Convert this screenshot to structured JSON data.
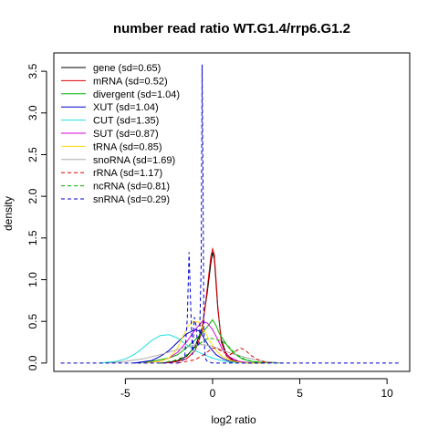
{
  "chart_data": {
    "type": "line",
    "title": "number read ratio WT.G1.4/rrp6.G1.2",
    "xlabel": "log2 ratio",
    "ylabel": "density",
    "xlim": [
      -9.1,
      11.3
    ],
    "ylim": [
      -0.1,
      3.72
    ],
    "xticks": [
      -5,
      0,
      5,
      10
    ],
    "xtick_labels": [
      "-5",
      "0",
      "5",
      "10"
    ],
    "yticks": [
      0.0,
      0.5,
      1.0,
      1.5,
      2.0,
      2.5,
      3.0,
      3.5
    ],
    "ytick_labels": [
      "0.0",
      "0.5",
      "1.0",
      "1.5",
      "2.0",
      "2.5",
      "3.0",
      "3.5"
    ],
    "legend_position": "top-left",
    "grid": false,
    "series": [
      {
        "name": "gene (sd=0.65)",
        "color": "#000000",
        "dash": "solid",
        "x": [
          -3.0,
          -2.5,
          -2.0,
          -1.5,
          -1.0,
          -0.6,
          -0.3,
          -0.1,
          0.0,
          0.1,
          0.2,
          0.3,
          0.5,
          0.8,
          1.2,
          1.8,
          2.5,
          3.0
        ],
        "y": [
          0.0,
          0.01,
          0.03,
          0.08,
          0.2,
          0.42,
          0.85,
          1.2,
          1.33,
          1.25,
          0.95,
          0.65,
          0.28,
          0.1,
          0.03,
          0.01,
          0.0,
          0.0
        ]
      },
      {
        "name": "mRNA (sd=0.52)",
        "color": "#df0000",
        "dash": "solid",
        "x": [
          -3.0,
          -2.5,
          -2.0,
          -1.5,
          -1.0,
          -0.6,
          -0.3,
          -0.1,
          0.0,
          0.1,
          0.2,
          0.3,
          0.5,
          0.8,
          1.2,
          1.8,
          2.5,
          3.0
        ],
        "y": [
          0.0,
          0.005,
          0.02,
          0.05,
          0.15,
          0.38,
          0.9,
          1.28,
          1.37,
          1.3,
          1.0,
          0.68,
          0.25,
          0.08,
          0.02,
          0.005,
          0.0,
          0.0
        ]
      },
      {
        "name": "divergent (sd=1.04)",
        "color": "#00b000",
        "dash": "solid",
        "x": [
          -4.5,
          -3.5,
          -2.5,
          -2.0,
          -1.5,
          -1.0,
          -0.5,
          0.0,
          0.2,
          0.4,
          0.8,
          1.2,
          1.7,
          2.2,
          3.0,
          4.0
        ],
        "y": [
          0.0,
          0.02,
          0.06,
          0.1,
          0.18,
          0.28,
          0.38,
          0.52,
          0.45,
          0.35,
          0.22,
          0.12,
          0.05,
          0.02,
          0.005,
          0.0
        ]
      },
      {
        "name": "XUT (sd=1.04)",
        "color": "#0000cc",
        "dash": "solid",
        "x": [
          -4.5,
          -3.5,
          -3.0,
          -2.5,
          -2.0,
          -1.5,
          -1.0,
          -0.7,
          -0.5,
          -0.2,
          0.2,
          0.6,
          1.0,
          1.5,
          2.0,
          3.0
        ],
        "y": [
          0.0,
          0.03,
          0.08,
          0.15,
          0.25,
          0.35,
          0.4,
          0.38,
          0.3,
          0.2,
          0.1,
          0.05,
          0.02,
          0.01,
          0.0,
          0.0
        ]
      },
      {
        "name": "CUT (sd=1.35)",
        "color": "#22dddd",
        "dash": "solid",
        "x": [
          -6.5,
          -5.5,
          -5.0,
          -4.5,
          -4.0,
          -3.5,
          -3.0,
          -2.5,
          -2.0,
          -1.5,
          -1.0,
          -0.5,
          0.0,
          0.5,
          1.0,
          2.0
        ],
        "y": [
          0.0,
          0.02,
          0.05,
          0.1,
          0.18,
          0.27,
          0.33,
          0.34,
          0.3,
          0.22,
          0.15,
          0.1,
          0.06,
          0.03,
          0.01,
          0.0
        ]
      },
      {
        "name": "SUT (sd=0.87)",
        "color": "#dd00dd",
        "dash": "solid",
        "x": [
          -4.0,
          -3.0,
          -2.5,
          -2.0,
          -1.5,
          -1.0,
          -0.6,
          -0.3,
          0.0,
          0.3,
          0.6,
          1.0,
          1.5,
          2.0,
          3.0
        ],
        "y": [
          0.0,
          0.02,
          0.06,
          0.13,
          0.25,
          0.4,
          0.5,
          0.48,
          0.4,
          0.28,
          0.15,
          0.07,
          0.02,
          0.005,
          0.0
        ]
      },
      {
        "name": "tRNA (sd=0.85)",
        "color": "#ffdd00",
        "dash": "solid",
        "x": [
          -4.0,
          -3.0,
          -2.5,
          -2.0,
          -1.7,
          -1.4,
          -1.1,
          -0.8,
          -0.5,
          -0.2,
          0.2,
          0.6,
          1.0,
          1.5,
          2.0,
          3.0
        ],
        "y": [
          0.0,
          0.02,
          0.06,
          0.18,
          0.32,
          0.44,
          0.5,
          0.49,
          0.4,
          0.28,
          0.15,
          0.07,
          0.03,
          0.01,
          0.0,
          0.0
        ]
      },
      {
        "name": "snoRNA (sd=1.69)",
        "color": "#aaaaaa",
        "dash": "solid",
        "x": [
          -6.0,
          -5.0,
          -4.0,
          -3.0,
          -2.0,
          -1.5,
          -1.0,
          -0.5,
          0.0,
          0.5,
          1.0,
          2.0,
          3.0,
          4.0
        ],
        "y": [
          0.0,
          0.02,
          0.05,
          0.1,
          0.16,
          0.19,
          0.22,
          0.22,
          0.2,
          0.16,
          0.12,
          0.06,
          0.02,
          0.0
        ]
      },
      {
        "name": "rRNA (sd=1.17)",
        "color": "#df0000",
        "dash": "dashed",
        "x": [
          -2.0,
          -1.0,
          -0.5,
          0.0,
          0.3,
          0.6,
          1.0,
          1.3,
          1.6,
          1.9,
          2.2,
          2.6,
          3.0,
          3.5
        ],
        "y": [
          0.0,
          0.04,
          0.1,
          0.18,
          0.17,
          0.13,
          0.1,
          0.14,
          0.18,
          0.15,
          0.09,
          0.04,
          0.01,
          0.0
        ]
      },
      {
        "name": "ncRNA (sd=0.81)",
        "color": "#00b000",
        "dash": "dashed",
        "x": [
          -3.0,
          -2.2,
          -1.6,
          -1.2,
          -0.8,
          -0.5,
          -0.2,
          0.1,
          0.4,
          0.7,
          1.0,
          1.4,
          1.8,
          2.4,
          3.0
        ],
        "y": [
          0.0,
          0.03,
          0.08,
          0.15,
          0.22,
          0.27,
          0.3,
          0.29,
          0.27,
          0.24,
          0.18,
          0.1,
          0.05,
          0.01,
          0.0
        ]
      },
      {
        "name": "snRNA (sd=0.29)",
        "color": "#0000cc",
        "dash": "dashed",
        "x": [
          -8.7,
          -3.0,
          -2.0,
          -1.6,
          -1.45,
          -1.35,
          -1.25,
          -1.15,
          -1.05,
          -0.95,
          -0.85,
          -0.75,
          -0.65,
          -0.6,
          -0.55,
          -0.5,
          -0.45,
          -0.4,
          -0.3,
          0.0,
          1.0,
          10.7
        ],
        "y": [
          0.0,
          0.0,
          0.0,
          0.05,
          0.55,
          1.33,
          0.65,
          0.1,
          0.55,
          0.45,
          0.2,
          0.25,
          1.2,
          3.58,
          2.2,
          0.4,
          0.15,
          0.05,
          0.02,
          0.0,
          0.0,
          0.0
        ]
      }
    ]
  }
}
